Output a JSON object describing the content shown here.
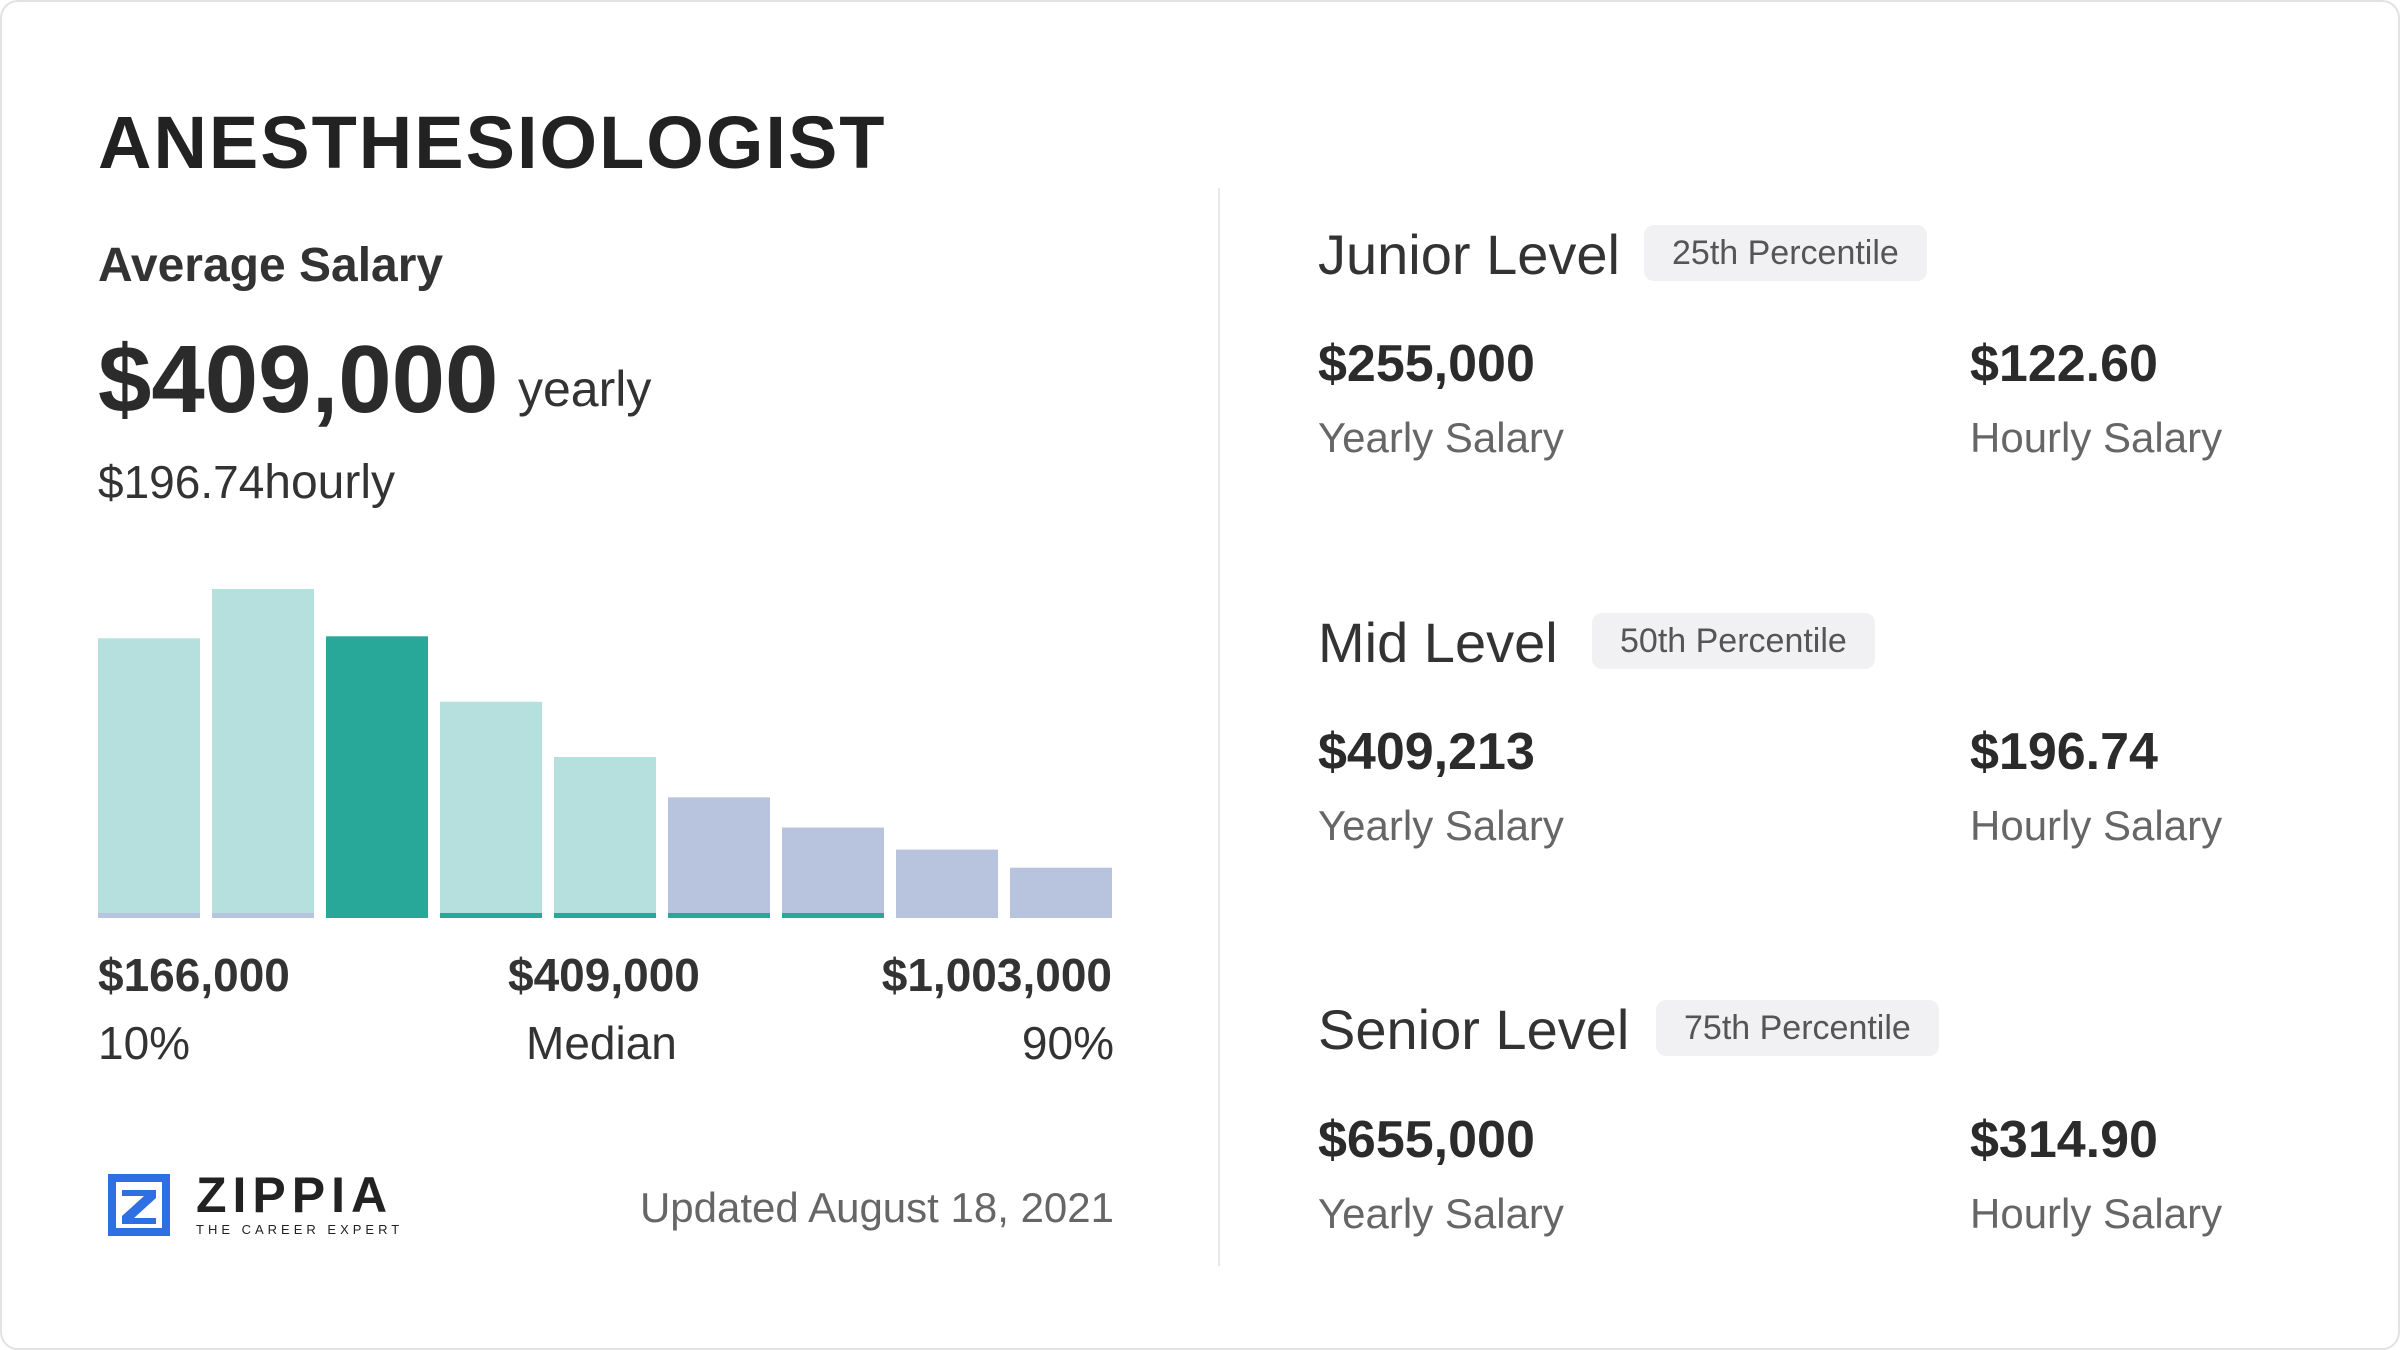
{
  "header": {
    "title": "ANESTHESIOLOGIST",
    "avg_label": "Average Salary",
    "avg_yearly": "$409,000",
    "avg_yearly_unit": "yearly",
    "avg_hourly": "$196.74",
    "avg_hourly_unit": "hourly"
  },
  "chart_data": {
    "type": "bar",
    "values": [
      278,
      327,
      280,
      215,
      160,
      120,
      90,
      68,
      50
    ],
    "bar_colors": [
      "#b5e0dd",
      "#b5e0dd",
      "#27a898",
      "#b5e0dd",
      "#b5e0dd",
      "#b8c4de",
      "#b8c4de",
      "#b8c4de",
      "#b8c4de"
    ],
    "underline_colors": [
      "#b8c4de",
      "#b8c4de",
      "#27a898",
      "#27a898",
      "#27a898",
      "#27a898",
      "#27a898",
      null,
      null
    ],
    "ylim": [
      0,
      330
    ],
    "x_labels": {
      "low_value": "$166,000",
      "low_label": "10%",
      "mid_value": "$409,000",
      "mid_label": "Median",
      "high_value": "$1,003,000",
      "high_label": "90%"
    }
  },
  "footer": {
    "brand": "ZIPPIA",
    "tagline": "THE CAREER EXPERT",
    "updated": "Updated August 18, 2021"
  },
  "levels": [
    {
      "title": "Junior Level",
      "badge": "25th Percentile",
      "yearly": "$255,000",
      "yearly_label": "Yearly Salary",
      "hourly": "$122.60",
      "hourly_label": "Hourly Salary"
    },
    {
      "title": "Mid Level",
      "badge": "50th Percentile",
      "yearly": "$409,213",
      "yearly_label": "Yearly Salary",
      "hourly": "$196.74",
      "hourly_label": "Hourly Salary"
    },
    {
      "title": "Senior Level",
      "badge": "75th Percentile",
      "yearly": "$655,000",
      "yearly_label": "Yearly Salary",
      "hourly": "$314.90",
      "hourly_label": "Hourly Salary"
    }
  ],
  "colors": {
    "brand_blue": "#2f6fe4",
    "teal": "#27a898",
    "light_teal": "#b5e0dd",
    "light_blue": "#b8c4de"
  }
}
